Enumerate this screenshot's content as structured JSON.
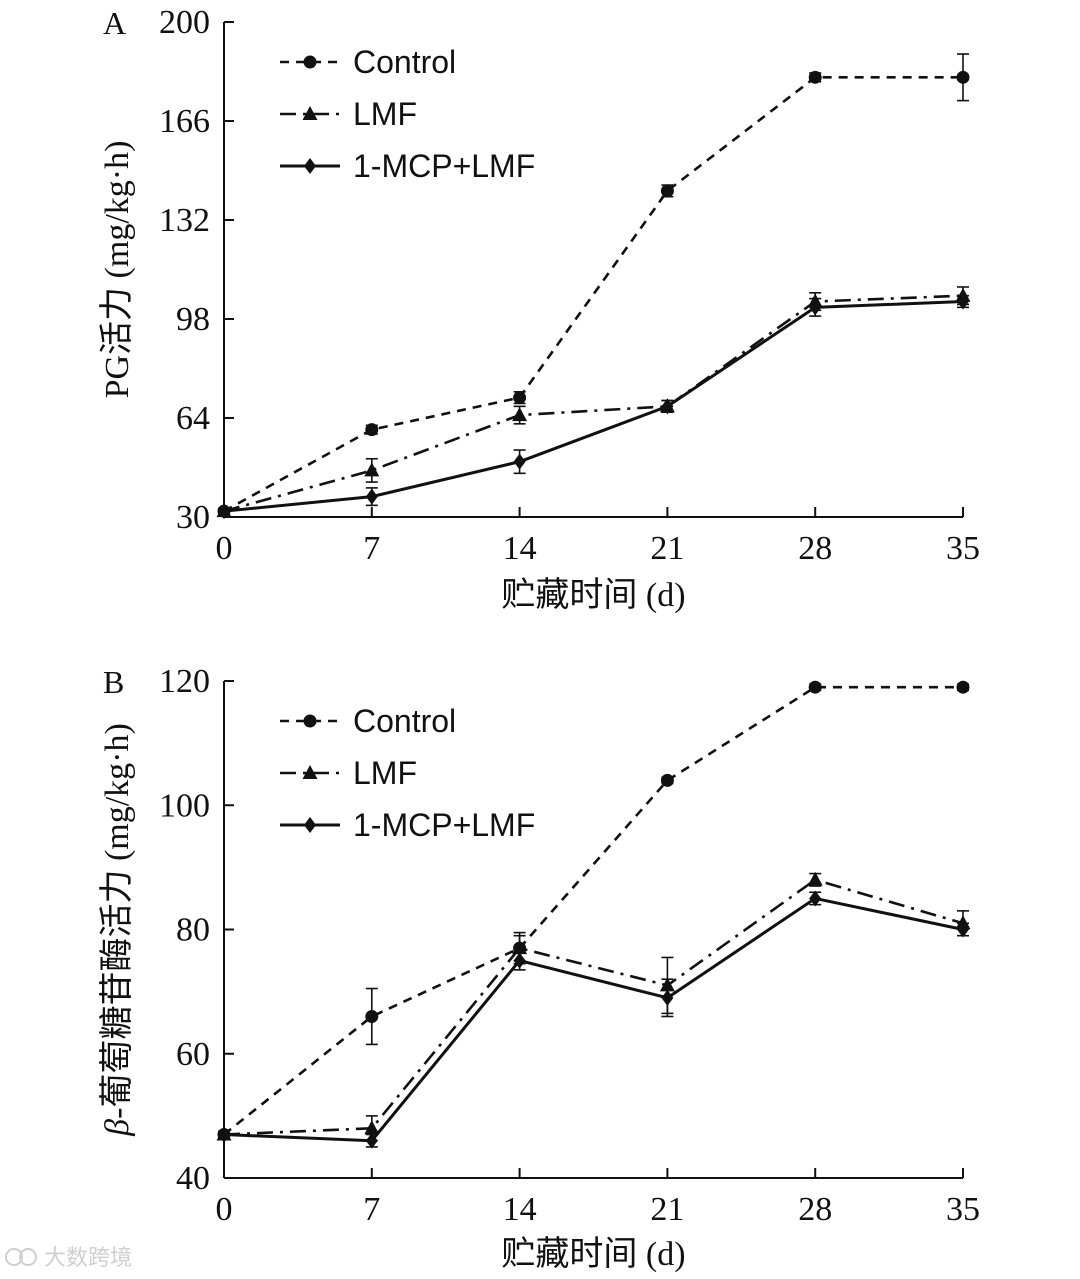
{
  "chart_data": [
    {
      "type": "line",
      "panel": "A",
      "xlabel": "贮藏时间 (d)",
      "ylabel": "PG活力 (mg/kg·h)",
      "x": [
        0,
        7,
        14,
        21,
        28,
        35
      ],
      "xticks": [
        "0",
        "7",
        "14",
        "21",
        "28",
        "35"
      ],
      "yticks": [
        "30",
        "64",
        "98",
        "132",
        "166",
        "200"
      ],
      "xlim": [
        0,
        35
      ],
      "ylim": [
        30,
        200
      ],
      "legend_position": "top-left",
      "series": [
        {
          "name": "Control",
          "style": "dashed",
          "marker": "circle",
          "values": [
            32,
            60,
            71,
            142,
            181,
            181
          ],
          "errors": [
            1,
            1.5,
            2,
            2,
            1.5,
            8
          ]
        },
        {
          "name": "LMF",
          "style": "dashdot",
          "marker": "triangle",
          "values": [
            32,
            46,
            65,
            68,
            104,
            106
          ],
          "errors": [
            1,
            4,
            3,
            2,
            3,
            3
          ]
        },
        {
          "name": "1-MCP+LMF",
          "style": "solid",
          "marker": "diamond",
          "values": [
            32,
            37,
            49,
            68,
            102,
            104
          ],
          "errors": [
            1,
            3,
            4,
            2,
            3,
            2
          ]
        }
      ]
    },
    {
      "type": "line",
      "panel": "B",
      "xlabel": "贮藏时间 (d)",
      "ylabel_prefix": "β",
      "ylabel": "-葡萄糖苷酶活力 (mg/kg·h)",
      "x": [
        0,
        7,
        14,
        21,
        28,
        35
      ],
      "xticks": [
        "0",
        "7",
        "14",
        "21",
        "28",
        "35"
      ],
      "yticks": [
        "40",
        "60",
        "80",
        "100",
        "120"
      ],
      "xlim": [
        0,
        35
      ],
      "ylim": [
        40,
        120
      ],
      "legend_position": "top-left",
      "series": [
        {
          "name": "Control",
          "style": "dashed",
          "marker": "circle",
          "values": [
            47,
            66,
            77,
            104,
            119,
            119
          ],
          "errors": [
            0.5,
            4.5,
            2,
            0.5,
            0.5,
            0.5
          ]
        },
        {
          "name": "LMF",
          "style": "dashdot",
          "marker": "triangle",
          "values": [
            47,
            48,
            77,
            71,
            88,
            81
          ],
          "errors": [
            0.5,
            2,
            2.5,
            4.5,
            1,
            2
          ]
        },
        {
          "name": "1-MCP+LMF",
          "style": "solid",
          "marker": "diamond",
          "values": [
            47,
            46,
            75,
            69,
            85,
            80
          ],
          "errors": [
            0.5,
            1,
            1.5,
            3,
            1,
            1
          ]
        }
      ]
    }
  ],
  "watermark": "大数跨境"
}
